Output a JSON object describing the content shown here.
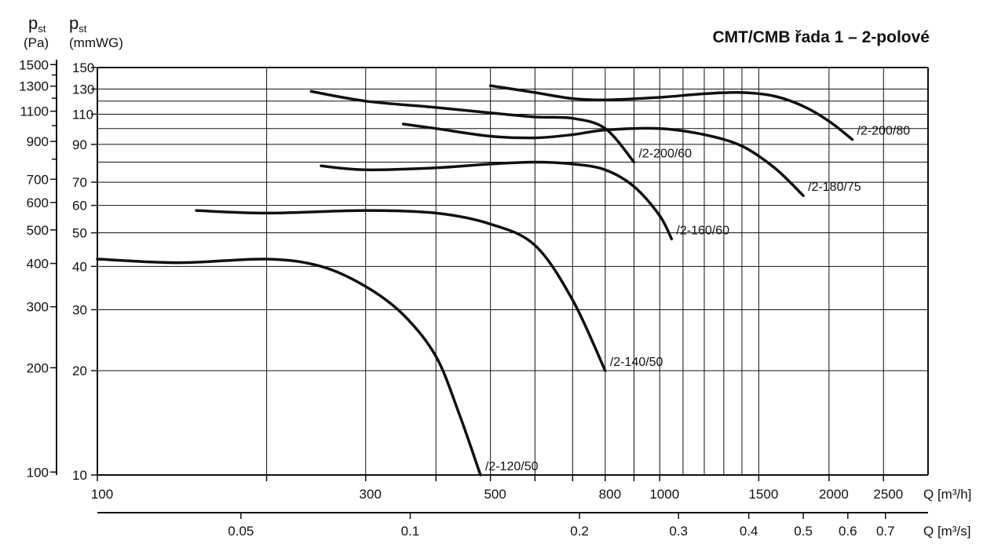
{
  "chart_data": {
    "type": "line",
    "title": "CMT/CMB řada 1 – 2-polové",
    "x_scale": "log",
    "y_scale": "log",
    "y_left_label_main": "p",
    "y_left_label_sub": "st",
    "y_left_unit": "(Pa)",
    "y_right_label_main": "p",
    "y_right_label_sub": "st",
    "y_right_unit": "(mmWG)",
    "x_label_m3h": "Q [m³/h]",
    "x_label_m3s": "Q [m³/s]",
    "xlim_m3h": [
      100,
      3000
    ],
    "ylim_mmwg": [
      10,
      150
    ],
    "ylim_pa": [
      100,
      1500
    ],
    "x_ticks_m3h": [
      "100",
      "300",
      "500",
      "800",
      "1000",
      "1500",
      "2000",
      "2500"
    ],
    "x_ticks_m3s": [
      "0.05",
      "0.1",
      "0.2",
      "0.3",
      "0.4",
      "0.5",
      "0.6",
      "0.7"
    ],
    "y_ticks_mmwg": [
      "10",
      "20",
      "30",
      "40",
      "50",
      "60",
      "70",
      "90",
      "110",
      "130",
      "150"
    ],
    "y_ticks_pa": [
      "100",
      "200",
      "300",
      "400",
      "500",
      "600",
      "700",
      "900",
      "1100",
      "1300",
      "1500"
    ],
    "grid": true,
    "series": [
      {
        "name": "/2-120/50",
        "x": [
          100,
          140,
          200,
          250,
          300,
          350,
          400,
          440,
          480
        ],
        "y": [
          42,
          41,
          42,
          40,
          35,
          29,
          22,
          15,
          10
        ]
      },
      {
        "name": "/2-140/50",
        "x": [
          150,
          200,
          300,
          400,
          500,
          600,
          700,
          800
        ],
        "y": [
          58,
          57,
          58,
          57,
          53,
          46,
          32,
          20
        ]
      },
      {
        "name": "/2-160/60",
        "x": [
          250,
          300,
          400,
          500,
          600,
          700,
          800,
          900,
          1000,
          1050
        ],
        "y": [
          78,
          76,
          77,
          79,
          80,
          79,
          76,
          68,
          56,
          48
        ]
      },
      {
        "name": "/2-180/75",
        "x": [
          350,
          400,
          500,
          600,
          700,
          800,
          1000,
          1200,
          1400,
          1600,
          1800
        ],
        "y": [
          103,
          100,
          95,
          94,
          96,
          99,
          100,
          96,
          89,
          77,
          64
        ]
      },
      {
        "name": "/2-200/60",
        "x": [
          240,
          300,
          400,
          500,
          600,
          700,
          800,
          900
        ],
        "y": [
          128,
          120,
          115,
          111,
          108,
          107,
          100,
          80
        ]
      },
      {
        "name": "/2-200/80",
        "x": [
          500,
          600,
          700,
          800,
          1000,
          1200,
          1400,
          1600,
          1800,
          2000,
          2200
        ],
        "y": [
          133,
          127,
          122,
          121,
          123,
          126,
          127,
          124,
          116,
          105,
          93
        ]
      }
    ]
  }
}
